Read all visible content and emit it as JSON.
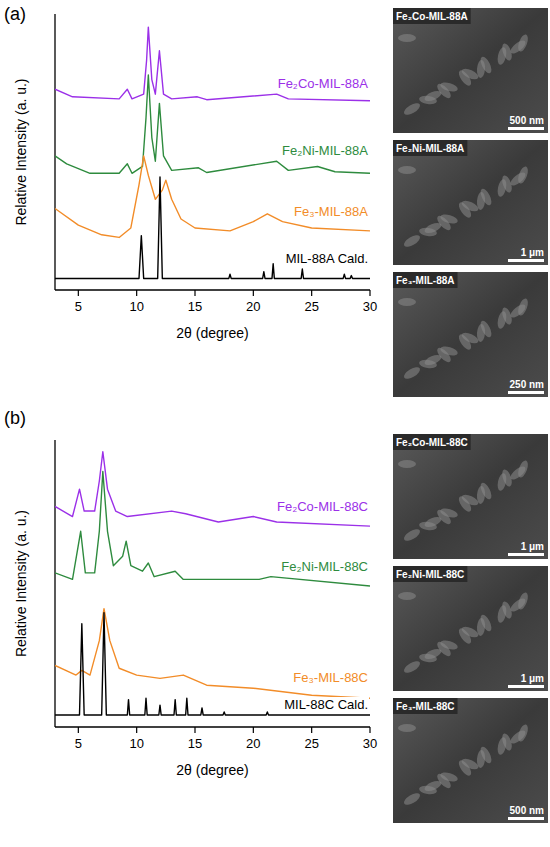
{
  "chart_data": [
    {
      "type": "line",
      "panel_label": "(a)",
      "x_label": "2θ (degree)",
      "y_label": "Relative Intensity (a. u.)",
      "xlim": [
        3,
        30
      ],
      "ylim": [
        0,
        105
      ],
      "xticks": [
        5,
        10,
        15,
        20,
        25,
        30
      ],
      "tick_labels": "x",
      "series": [
        {
          "name": "Fe₂Co-MIL-88A",
          "color": "#9b30e8",
          "x": [
            3,
            4.5,
            8.5,
            9.2,
            9.6,
            10.6,
            10.85,
            11.0,
            11.3,
            11.6,
            11.95,
            12.3,
            13,
            15.2,
            16,
            22,
            23,
            30
          ],
          "values": [
            76.4,
            73.5,
            72.7,
            76.4,
            72.7,
            74.5,
            87.3,
            100,
            80,
            74.5,
            91,
            74.5,
            72.7,
            73.5,
            72.4,
            74.5,
            72.7,
            72
          ]
        },
        {
          "name": "Fe₂Ni-MIL-88A",
          "color": "#2e8b3e",
          "x": [
            3,
            4,
            6,
            8.5,
            9.2,
            9.6,
            10.5,
            10.8,
            11.0,
            11.3,
            11.6,
            11.95,
            12.3,
            13,
            15.3,
            16,
            22,
            23,
            25.5,
            27,
            30
          ],
          "values": [
            51,
            48,
            44.4,
            44.4,
            48,
            44.4,
            47,
            65.5,
            81.8,
            58,
            49,
            71,
            51,
            45.5,
            46.5,
            44.7,
            49,
            45.5,
            47,
            45,
            44.4
          ]
        },
        {
          "name": "Fe₃-MIL-88A",
          "color": "#f28c28",
          "x": [
            3,
            5,
            7,
            8.5,
            9.5,
            10.2,
            10.6,
            11.0,
            11.6,
            12.2,
            12.5,
            13.0,
            13.8,
            15,
            18,
            20,
            21.2,
            22.5,
            25,
            30
          ],
          "values": [
            31,
            24.7,
            21,
            20,
            23.6,
            40,
            51,
            43.6,
            34.5,
            38,
            41.8,
            34.5,
            27,
            23.6,
            22.5,
            26,
            29,
            26,
            23.6,
            22.5
          ]
        },
        {
          "name": "MIL-88A Cald.",
          "color": "#000000",
          "x": [
            3,
            10.2,
            10.4,
            10.6,
            11.8,
            12.0,
            12.2,
            17.9,
            18.0,
            18.1,
            20.8,
            20.9,
            21.0,
            21.6,
            21.7,
            21.8,
            24.1,
            24.2,
            24.3,
            27.7,
            27.8,
            27.9,
            28.3,
            28.4,
            28.5,
            30
          ],
          "values": [
            4.4,
            4.4,
            20.7,
            4.4,
            4.4,
            43,
            4.4,
            4.4,
            6,
            4.4,
            4.4,
            7,
            4.4,
            4.4,
            10,
            4.4,
            4.4,
            8,
            4.4,
            4.4,
            6,
            4.4,
            4.4,
            5.5,
            4.4,
            4.4
          ]
        }
      ]
    },
    {
      "type": "line",
      "panel_label": "(b)",
      "x_label": "2θ (degree)",
      "y_label": "Relative Intensity (a. u.)",
      "xlim": [
        3,
        30
      ],
      "ylim": [
        0,
        105
      ],
      "xticks": [
        5,
        10,
        15,
        20,
        25,
        30
      ],
      "tick_labels": "x",
      "series": [
        {
          "name": "Fe₂Co-MIL-88C",
          "color": "#9b30e8",
          "x": [
            3,
            4.5,
            5.1,
            5.5,
            6.4,
            6.8,
            7.1,
            7.5,
            8.2,
            9.2,
            13,
            14.2,
            17,
            20,
            22,
            30
          ],
          "values": [
            80.7,
            77,
            87,
            79,
            79,
            90,
            100.7,
            87,
            79,
            77,
            79,
            78,
            75,
            77,
            75,
            73.5
          ]
        },
        {
          "name": "Fe₂Ni-MIL-88C",
          "color": "#2e8b3e",
          "x": [
            3,
            4.5,
            5.2,
            5.6,
            6.4,
            6.8,
            7.1,
            7.5,
            8.0,
            8.8,
            9.1,
            9.5,
            10.5,
            11,
            11.5,
            13.3,
            14,
            20.5,
            21.5,
            30
          ],
          "values": [
            56.4,
            54,
            71.6,
            56.4,
            56.4,
            71.6,
            93.5,
            71.6,
            59,
            62.5,
            68,
            59,
            57,
            60,
            55,
            57,
            54,
            54,
            55,
            51.6
          ]
        },
        {
          "name": "Fe₃-MIL-88C",
          "color": "#f28c28",
          "x": [
            3,
            4.8,
            5.3,
            6,
            6.8,
            7.2,
            7.7,
            8.5,
            10,
            12,
            14,
            16,
            20,
            25,
            30
          ],
          "values": [
            22.5,
            19,
            20.7,
            19,
            31.6,
            43.3,
            31.6,
            21.5,
            19,
            17.8,
            19,
            15.3,
            14.2,
            11.6,
            10.5
          ]
        },
        {
          "name": "MIL-88C Cald.",
          "color": "#000000",
          "x": [
            3,
            5.1,
            5.3,
            5.5,
            7.0,
            7.2,
            7.4,
            9.2,
            9.3,
            9.4,
            10.7,
            10.8,
            10.9,
            11.9,
            12.0,
            12.1,
            13.2,
            13.3,
            13.4,
            14.2,
            14.3,
            14.4,
            15.5,
            15.6,
            15.7,
            17.4,
            17.5,
            17.6,
            21.1,
            21.2,
            21.3,
            30
          ],
          "values": [
            4.4,
            4.4,
            37.8,
            4.4,
            4.4,
            41.8,
            4.4,
            4.4,
            10,
            4.4,
            4.4,
            10.5,
            4.4,
            4.4,
            8,
            4.4,
            4.4,
            10,
            4.4,
            4.4,
            10.5,
            4.4,
            4.4,
            7,
            4.4,
            4.4,
            5.5,
            4.4,
            4.4,
            5.5,
            4.4,
            4.4
          ]
        }
      ]
    }
  ],
  "sem_images": [
    [
      {
        "label": "Fe₂Co-MIL-88A",
        "scale_bar": "500 nm"
      },
      {
        "label": "Fe₂Ni-MIL-88A",
        "scale_bar": "1 μm"
      },
      {
        "label": "Fe₃-MIL-88A",
        "scale_bar": "250 nm"
      }
    ],
    [
      {
        "label": "Fe₂Co-MIL-88C",
        "scale_bar": "1 μm"
      },
      {
        "label": "Fe₂Ni-MIL-88C",
        "scale_bar": "1 μm"
      },
      {
        "label": "Fe₃-MIL-88C",
        "scale_bar": "500 nm"
      }
    ]
  ]
}
